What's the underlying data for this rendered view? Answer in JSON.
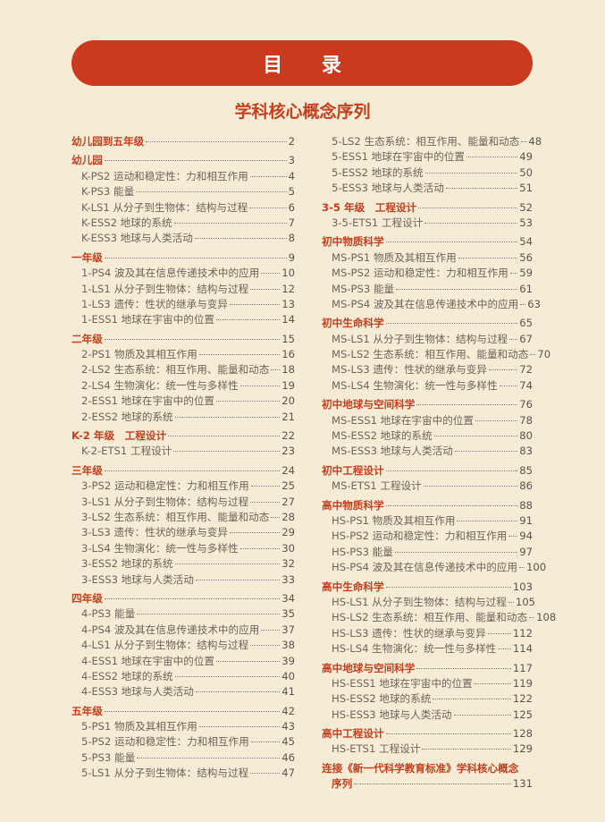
{
  "header": {
    "title": "目 录",
    "subtitle": "学科核心概念序列"
  },
  "colors": {
    "accent": "#c93a1e",
    "background": "#f6ebd4",
    "text": "#6d645b"
  },
  "left_column": [
    {
      "type": "section",
      "label": "幼儿园到五年级",
      "page": "2"
    },
    {
      "type": "section",
      "label": "幼儿园",
      "page": "3"
    },
    {
      "type": "item",
      "label": "K-PS2 运动和稳定性：力和相互作用",
      "page": "4"
    },
    {
      "type": "item",
      "label": "K-PS3 能量",
      "page": "5"
    },
    {
      "type": "item",
      "label": "K-LS1 从分子到生物体：结构与过程",
      "page": "6"
    },
    {
      "type": "item",
      "label": "K-ESS2 地球的系统",
      "page": "7"
    },
    {
      "type": "item",
      "label": "K-ESS3 地球与人类活动",
      "page": "8"
    },
    {
      "type": "section",
      "label": "一年级",
      "page": "9"
    },
    {
      "type": "item",
      "label": "1-PS4 波及其在信息传递技术中的应用",
      "page": "10"
    },
    {
      "type": "item",
      "label": "1-LS1 从分子到生物体：结构与过程",
      "page": "12"
    },
    {
      "type": "item",
      "label": "1-LS3 遗传：性状的继承与变异",
      "page": "13"
    },
    {
      "type": "item",
      "label": "1-ESS1 地球在宇宙中的位置",
      "page": "14"
    },
    {
      "type": "section",
      "label": "二年级",
      "page": "15"
    },
    {
      "type": "item",
      "label": "2-PS1 物质及其相互作用",
      "page": "16"
    },
    {
      "type": "item",
      "label": "2-LS2 生态系统：相互作用、能量和动态",
      "page": "18"
    },
    {
      "type": "item",
      "label": "2-LS4 生物演化：统一性与多样性",
      "page": "19"
    },
    {
      "type": "item",
      "label": "2-ESS1 地球在宇宙中的位置",
      "page": "20"
    },
    {
      "type": "item",
      "label": "2-ESS2 地球的系统",
      "page": "21"
    },
    {
      "type": "section",
      "label": "K-2 年级　工程设计",
      "page": "22"
    },
    {
      "type": "item",
      "label": "K-2-ETS1 工程设计",
      "page": "23"
    },
    {
      "type": "section",
      "label": "三年级",
      "page": "24"
    },
    {
      "type": "item",
      "label": "3-PS2 运动和稳定性：力和相互作用",
      "page": "25"
    },
    {
      "type": "item",
      "label": "3-LS1 从分子到生物体：结构与过程",
      "page": "27"
    },
    {
      "type": "item",
      "label": "3-LS2 生态系统：相互作用、能量和动态",
      "page": "28"
    },
    {
      "type": "item",
      "label": "3-LS3 遗传：性状的继承与变异",
      "page": "29"
    },
    {
      "type": "item",
      "label": "3-LS4 生物演化：统一性与多样性",
      "page": "30"
    },
    {
      "type": "item",
      "label": "3-ESS2 地球的系统",
      "page": "32"
    },
    {
      "type": "item",
      "label": "3-ESS3 地球与人类活动",
      "page": "33"
    },
    {
      "type": "section",
      "label": "四年级",
      "page": "34"
    },
    {
      "type": "item",
      "label": "4-PS3 能量",
      "page": "35"
    },
    {
      "type": "item",
      "label": "4-PS4 波及其在信息传递技术中的应用",
      "page": "37"
    },
    {
      "type": "item",
      "label": "4-LS1 从分子到生物体：结构与过程",
      "page": "38"
    },
    {
      "type": "item",
      "label": "4-ESS1 地球在宇宙中的位置",
      "page": "39"
    },
    {
      "type": "item",
      "label": "4-ESS2 地球的系统",
      "page": "40"
    },
    {
      "type": "item",
      "label": "4-ESS3 地球与人类活动",
      "page": "41"
    },
    {
      "type": "section",
      "label": "五年级",
      "page": "42"
    },
    {
      "type": "item",
      "label": "5-PS1 物质及其相互作用",
      "page": "43"
    },
    {
      "type": "item",
      "label": "5-PS2 运动和稳定性：力和相互作用",
      "page": "45"
    },
    {
      "type": "item",
      "label": "5-PS3 能量",
      "page": "46"
    },
    {
      "type": "item",
      "label": "5-LS1 从分子到生物体：结构与过程",
      "page": "47"
    }
  ],
  "right_column": [
    {
      "type": "item",
      "label": "5-LS2 生态系统：相互作用、能量和动态",
      "page": "48"
    },
    {
      "type": "item",
      "label": "5-ESS1 地球在宇宙中的位置",
      "page": "49"
    },
    {
      "type": "item",
      "label": "5-ESS2 地球的系统",
      "page": "50"
    },
    {
      "type": "item",
      "label": "5-ESS3 地球与人类活动",
      "page": "51"
    },
    {
      "type": "section",
      "label": "3-5 年级　工程设计",
      "page": "52"
    },
    {
      "type": "item",
      "label": "3-5-ETS1 工程设计",
      "page": "53"
    },
    {
      "type": "section",
      "label": "初中物质科学",
      "page": "54"
    },
    {
      "type": "item",
      "label": "MS-PS1 物质及其相互作用",
      "page": "56"
    },
    {
      "type": "item",
      "label": "MS-PS2 运动和稳定性：力和相互作用",
      "page": "59"
    },
    {
      "type": "item",
      "label": "MS-PS3 能量",
      "page": "61"
    },
    {
      "type": "item",
      "label": "MS-PS4 波及其在信息传递技术中的应用",
      "page": "63"
    },
    {
      "type": "section",
      "label": "初中生命科学",
      "page": "65"
    },
    {
      "type": "item",
      "label": "MS-LS1 从分子到生物体：结构与过程",
      "page": "67"
    },
    {
      "type": "item",
      "label": "MS-LS2 生态系统：相互作用、能量和动态",
      "page": "70"
    },
    {
      "type": "item",
      "label": "MS-LS3 遗传：性状的继承与变异",
      "page": "72"
    },
    {
      "type": "item",
      "label": "MS-LS4 生物演化：统一性与多样性",
      "page": "74"
    },
    {
      "type": "section",
      "label": "初中地球与空间科学",
      "page": "76"
    },
    {
      "type": "item",
      "label": "MS-ESS1 地球在宇宙中的位置",
      "page": "78"
    },
    {
      "type": "item",
      "label": "MS-ESS2 地球的系统",
      "page": "80"
    },
    {
      "type": "item",
      "label": "MS-ESS3 地球与人类活动",
      "page": "83"
    },
    {
      "type": "section",
      "label": "初中工程设计",
      "page": "85"
    },
    {
      "type": "item",
      "label": "MS-ETS1 工程设计",
      "page": "86"
    },
    {
      "type": "section",
      "label": "高中物质科学",
      "page": "88"
    },
    {
      "type": "item",
      "label": "HS-PS1 物质及其相互作用",
      "page": "91"
    },
    {
      "type": "item",
      "label": "HS-PS2 运动和稳定性：力和相互作用",
      "page": "94"
    },
    {
      "type": "item",
      "label": "HS-PS3 能量",
      "page": "97"
    },
    {
      "type": "item",
      "label": "HS-PS4 波及其在信息传递技术中的应用",
      "page": "100"
    },
    {
      "type": "section",
      "label": "高中生命科学",
      "page": "103"
    },
    {
      "type": "item",
      "label": "HS-LS1 从分子到生物体：结构与过程",
      "page": "105"
    },
    {
      "type": "item",
      "label": "HS-LS2 生态系统：相互作用、能量和动态",
      "page": "108"
    },
    {
      "type": "item",
      "label": "HS-LS3 遗传：性状的继承与变异",
      "page": "112"
    },
    {
      "type": "item",
      "label": "HS-LS4 生物演化：统一性与多样性",
      "page": "114"
    },
    {
      "type": "section",
      "label": "高中地球与空间科学",
      "page": "117"
    },
    {
      "type": "item",
      "label": "HS-ESS1 地球在宇宙中的位置",
      "page": "119"
    },
    {
      "type": "item",
      "label": "HS-ESS2 地球的系统",
      "page": "122"
    },
    {
      "type": "item",
      "label": "HS-ESS3 地球与人类活动",
      "page": "125"
    },
    {
      "type": "section",
      "label": "高中工程设计",
      "page": "128"
    },
    {
      "type": "item",
      "label": "HS-ETS1 工程设计",
      "page": "129"
    },
    {
      "type": "plain",
      "label": "连接《新一代科学教育标准》学科核心概念",
      "page": ""
    },
    {
      "type": "cont",
      "label": "序列",
      "page": "131"
    }
  ]
}
